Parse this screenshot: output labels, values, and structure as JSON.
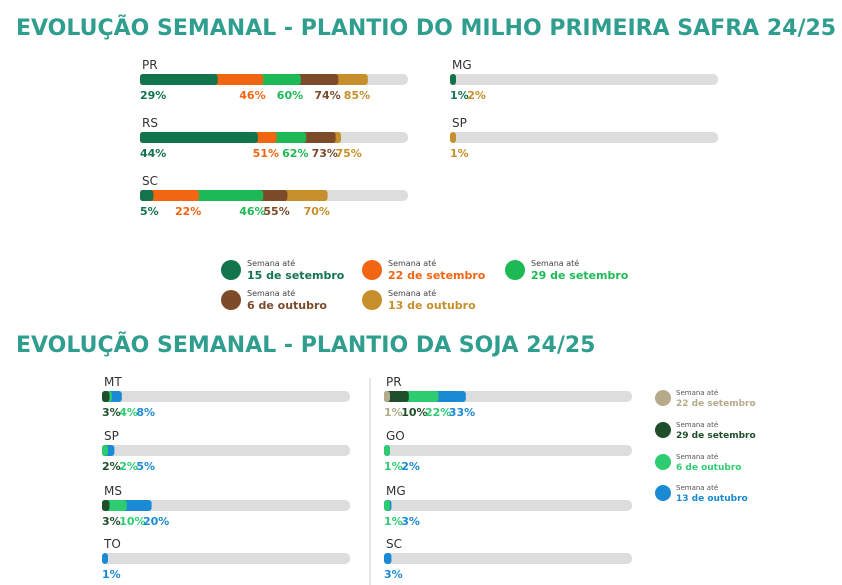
{
  "titles": {
    "milho": "EVOLUÇÃO SEMANAL - PLANTIO DO MILHO PRIMEIRA SAFRA 24/25",
    "soja": "EVOLUÇÃO SEMANAL - PLANTIO DA SOJA 24/25"
  },
  "chart_data": [
    {
      "type": "bar",
      "title": "EVOLUÇÃO SEMANAL - PLANTIO DO MILHO PRIMEIRA SAFRA 24/25",
      "categories": [
        "PR",
        "RS",
        "SC",
        "MG",
        "SP"
      ],
      "ylim": [
        0,
        100
      ],
      "series": [
        {
          "name": "Semana até 15 de setembro",
          "color": "#11744c",
          "values": [
            29,
            44,
            5,
            1,
            null
          ]
        },
        {
          "name": "Semana até 22 de setembro",
          "color": "#f26513",
          "values": [
            46,
            51,
            22,
            null,
            null
          ]
        },
        {
          "name": "Semana até 29 de setembro",
          "color": "#1db954",
          "values": [
            60,
            62,
            46,
            null,
            null
          ]
        },
        {
          "name": "Semana até 6 de outubro",
          "color": "#7d4a2a",
          "values": [
            74,
            73,
            55,
            null,
            null
          ]
        },
        {
          "name": "Semana até 13 de outubro",
          "color": "#c78f2b",
          "values": [
            85,
            75,
            70,
            2,
            1
          ]
        }
      ],
      "labels": {
        "PR": [
          "29%",
          "46%",
          "60%",
          "74%",
          "85%"
        ],
        "RS": [
          "44%",
          "51%",
          "62%",
          "73%",
          "75%"
        ],
        "SC": [
          "5%",
          "22%",
          "46%",
          "55%",
          "70%"
        ],
        "MG": [
          "1%",
          "2%"
        ],
        "SP": [
          "1%"
        ]
      },
      "legend": [
        {
          "prefix": "Semana até",
          "label": "15 de setembro",
          "color": "#11744c"
        },
        {
          "prefix": "Semana até",
          "label": "22 de setembro",
          "color": "#f26513"
        },
        {
          "prefix": "Semana até",
          "label": "29 de setembro",
          "color": "#1db954"
        },
        {
          "prefix": "Semana até",
          "label": "6 de outubro",
          "color": "#7d4a2a"
        },
        {
          "prefix": "Semana até",
          "label": "13 de outubro",
          "color": "#c78f2b"
        }
      ]
    },
    {
      "type": "bar",
      "title": "EVOLUÇÃO SEMANAL - PLANTIO DA SOJA 24/25",
      "categories": [
        "MT",
        "SP",
        "MS",
        "TO",
        "PR",
        "GO",
        "MG",
        "SC"
      ],
      "ylim": [
        0,
        100
      ],
      "series": [
        {
          "name": "Semana até 22 de setembro",
          "color": "#b5ab8a",
          "values": [
            null,
            null,
            null,
            null,
            1,
            null,
            null,
            null
          ]
        },
        {
          "name": "Semana até 29 de setembro",
          "color": "#1f4f2a",
          "values": [
            3,
            2,
            3,
            null,
            10,
            null,
            null,
            null
          ]
        },
        {
          "name": "Semana até 6 de outubro",
          "color": "#2ecc71",
          "values": [
            4,
            2,
            10,
            null,
            22,
            1,
            1,
            null
          ]
        },
        {
          "name": "Semana até 13 de outubro",
          "color": "#1b8ad4",
          "values": [
            8,
            5,
            20,
            1,
            33,
            2,
            3,
            3
          ]
        }
      ],
      "labels": {
        "MT": [
          "3%",
          "4%",
          "8%"
        ],
        "SP": [
          "2%",
          "2%",
          "5%"
        ],
        "MS": [
          "3%",
          "10%",
          "20%"
        ],
        "TO": [
          "1%"
        ],
        "PR": [
          "1%",
          "10%",
          "22%",
          "33%"
        ],
        "GO": [
          "1%",
          "2%"
        ],
        "MG": [
          "1%",
          "3%"
        ],
        "SC": [
          "3%"
        ]
      },
      "legend": [
        {
          "prefix": "Semana até",
          "label": "22 de setembro",
          "color": "#b5ab8a"
        },
        {
          "prefix": "Semana até",
          "label": "29 de setembro",
          "color": "#1f4f2a"
        },
        {
          "prefix": "Semana até",
          "label": "6 de outubro",
          "color": "#2ecc71"
        },
        {
          "prefix": "Semana até",
          "label": "13 de outubro",
          "color": "#1b8ad4"
        }
      ]
    }
  ]
}
